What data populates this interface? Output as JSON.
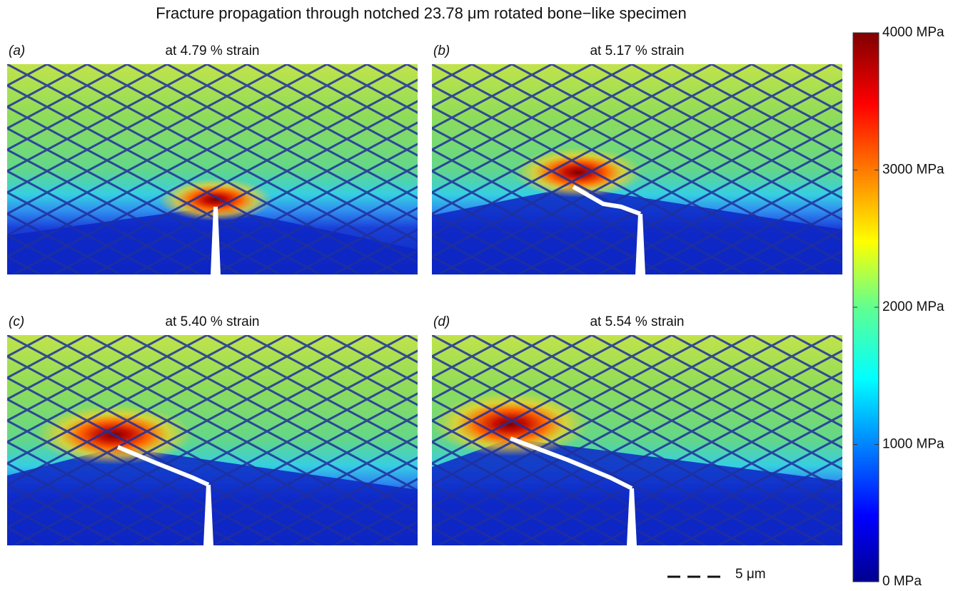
{
  "title": "Fracture propagation through notched 23.78 μm rotated bone−like specimen",
  "panels": [
    {
      "label": "(a)",
      "caption": "at 4.79 % strain"
    },
    {
      "label": "(b)",
      "caption": "at 5.17 % strain"
    },
    {
      "label": "(c)",
      "caption": "at 5.40 % strain"
    },
    {
      "label": "(d)",
      "caption": "at 5.54 % strain"
    }
  ],
  "colorbar": {
    "range": [
      0,
      4000
    ],
    "ticks": [
      {
        "value": 0,
        "label": "0 MPa"
      },
      {
        "value": 1000,
        "label": "1000 MPa"
      },
      {
        "value": 2000,
        "label": "2000 MPa"
      },
      {
        "value": 3000,
        "label": "3000 MPa"
      },
      {
        "value": 4000,
        "label": "4000 MPa"
      }
    ]
  },
  "scale_bar": {
    "label": "5 μm"
  }
}
